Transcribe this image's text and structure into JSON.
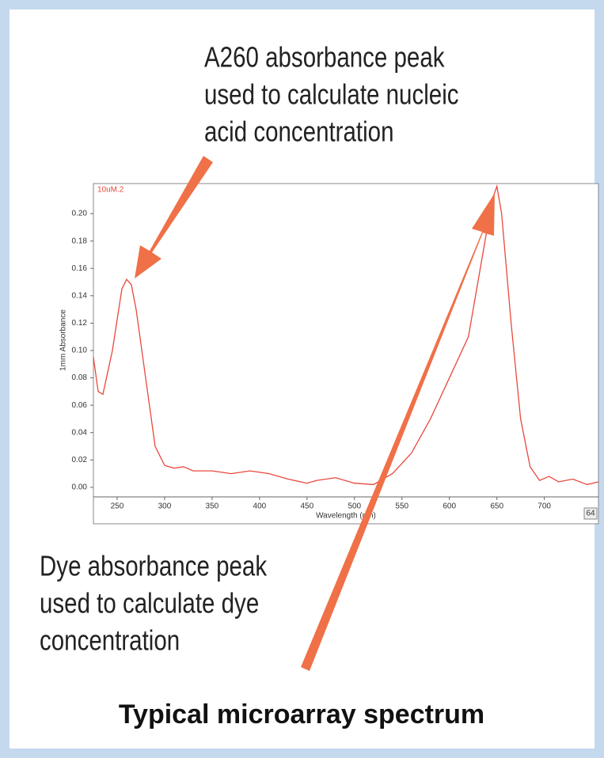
{
  "chart_data": {
    "type": "line",
    "title": "Typical microarray spectrum",
    "annotations": [
      [
        "A260 absorbance peak",
        "used to calculate nucleic",
        "acid concentration"
      ],
      [
        "Dye absorbance peak",
        "used to calculate dye",
        "concentration"
      ]
    ],
    "xlabel": "Wavelength (nm)",
    "ylabel": "1mm Absorbance",
    "corner_label": "64",
    "series": [
      {
        "name": "10uM.2",
        "color": "#e8483c",
        "x": [
          225,
          230,
          235,
          245,
          255,
          260,
          265,
          270,
          280,
          290,
          300,
          310,
          320,
          330,
          350,
          370,
          390,
          410,
          430,
          450,
          460,
          480,
          500,
          520,
          540,
          560,
          580,
          600,
          620,
          635,
          645,
          650,
          655,
          665,
          675,
          685,
          695,
          705,
          715,
          730,
          745,
          757
        ],
        "values": [
          0.095,
          0.07,
          0.068,
          0.1,
          0.145,
          0.152,
          0.148,
          0.13,
          0.08,
          0.03,
          0.016,
          0.014,
          0.015,
          0.012,
          0.012,
          0.01,
          0.012,
          0.01,
          0.006,
          0.003,
          0.005,
          0.007,
          0.003,
          0.002,
          0.01,
          0.025,
          0.05,
          0.08,
          0.11,
          0.17,
          0.21,
          0.22,
          0.2,
          0.12,
          0.05,
          0.015,
          0.005,
          0.008,
          0.004,
          0.006,
          0.002,
          0.004
        ]
      }
    ],
    "xlim": [
      225,
      757
    ],
    "xticks": [
      250,
      300,
      350,
      400,
      450,
      500,
      550,
      600,
      650,
      700
    ],
    "ylim": [
      -0.007,
      0.222
    ],
    "yticks": [
      {
        "value": 0,
        "label": "0.00"
      },
      {
        "value": 0.02,
        "label": "0.02"
      },
      {
        "value": 0.04,
        "label": "0.04"
      },
      {
        "value": 0.06,
        "label": "0.06"
      },
      {
        "value": 0.08,
        "label": "0.08"
      },
      {
        "value": 0.1,
        "label": "0.10"
      },
      {
        "value": 0.12,
        "label": "0.12"
      },
      {
        "value": 0.14,
        "label": "0.14"
      },
      {
        "value": 0.16,
        "label": "0.16"
      },
      {
        "value": 0.18,
        "label": "0.18"
      },
      {
        "value": 0.2,
        "label": "0.20"
      }
    ]
  }
}
